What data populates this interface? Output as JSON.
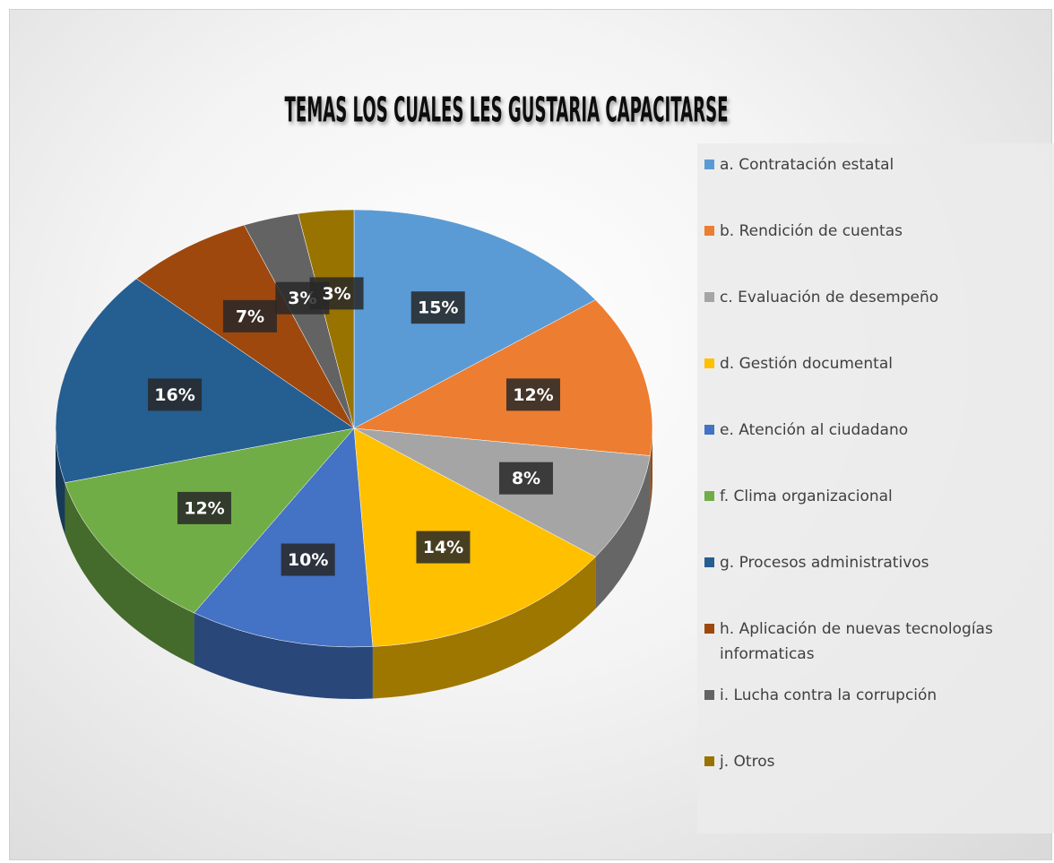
{
  "chart_data": {
    "type": "pie3d",
    "title": "TEMAS LOS CUALES LES GUSTARIA CAPACITARSE",
    "categories": [
      "a. Contratación estatal",
      "b. Rendición de cuentas",
      "c. Evaluación de desempeño",
      "d. Gestión documental",
      "e. Atención al ciudadano",
      "f. Clima organizacional",
      "g. Procesos administrativos",
      "h. Aplicación de nuevas tecnologías informaticas",
      "i. Lucha contra la corrupción",
      "j. Otros"
    ],
    "values": [
      15,
      12,
      8,
      14,
      10,
      12,
      16,
      7,
      3,
      3
    ],
    "value_labels": [
      "15%",
      "12%",
      "8%",
      "14%",
      "10%",
      "12%",
      "16%",
      "7%",
      "3%",
      "3%"
    ],
    "colors": [
      "#5b9bd5",
      "#ed7d31",
      "#a5a5a5",
      "#ffc000",
      "#4472c4",
      "#70ad47",
      "#255e91",
      "#9e480e",
      "#636363",
      "#997300"
    ],
    "legend": "right"
  }
}
